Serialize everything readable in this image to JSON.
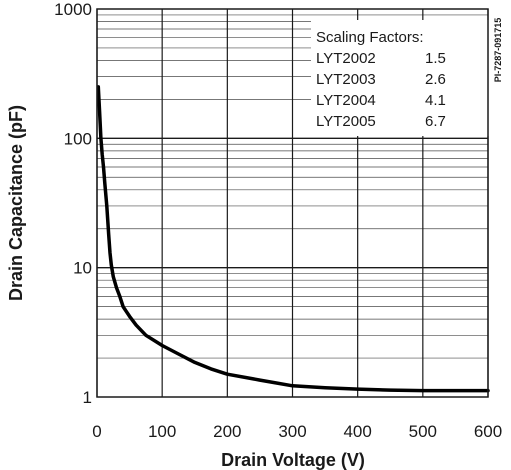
{
  "chart_data": {
    "type": "line",
    "xlabel": "Drain Voltage (V)",
    "ylabel": "Drain Capacitance (pF)",
    "figure_id": "PI-7287-091715",
    "xlim": [
      0,
      600
    ],
    "ylim": [
      1,
      1000
    ],
    "yscale": "log",
    "grid": true,
    "x_ticks": [
      "0",
      "100",
      "200",
      "300",
      "400",
      "500",
      "600"
    ],
    "y_ticks": [
      "1",
      "10",
      "100",
      "1000"
    ],
    "series": [
      {
        "color": "#000000",
        "x": [
          2,
          4,
          6,
          8,
          10,
          12,
          15,
          18,
          20,
          22,
          25,
          30,
          35,
          40,
          50,
          60,
          75,
          100,
          125,
          150,
          175,
          200,
          250,
          300,
          350,
          400,
          450,
          500,
          550,
          600
        ],
        "y": [
          250,
          160,
          100,
          75,
          60,
          45,
          30,
          18,
          13,
          10.5,
          8.5,
          7,
          6,
          5,
          4.2,
          3.6,
          3.0,
          2.5,
          2.15,
          1.85,
          1.65,
          1.5,
          1.35,
          1.22,
          1.18,
          1.15,
          1.13,
          1.12,
          1.12,
          1.12
        ]
      }
    ],
    "legend": {
      "title": "Scaling Factors:",
      "placement": "top-right",
      "entries": [
        {
          "part": "LYT2002",
          "factor": "1.5"
        },
        {
          "part": "LYT2003",
          "factor": "2.6"
        },
        {
          "part": "LYT2004",
          "factor": "4.1"
        },
        {
          "part": "LYT2005",
          "factor": "6.7"
        }
      ]
    }
  }
}
